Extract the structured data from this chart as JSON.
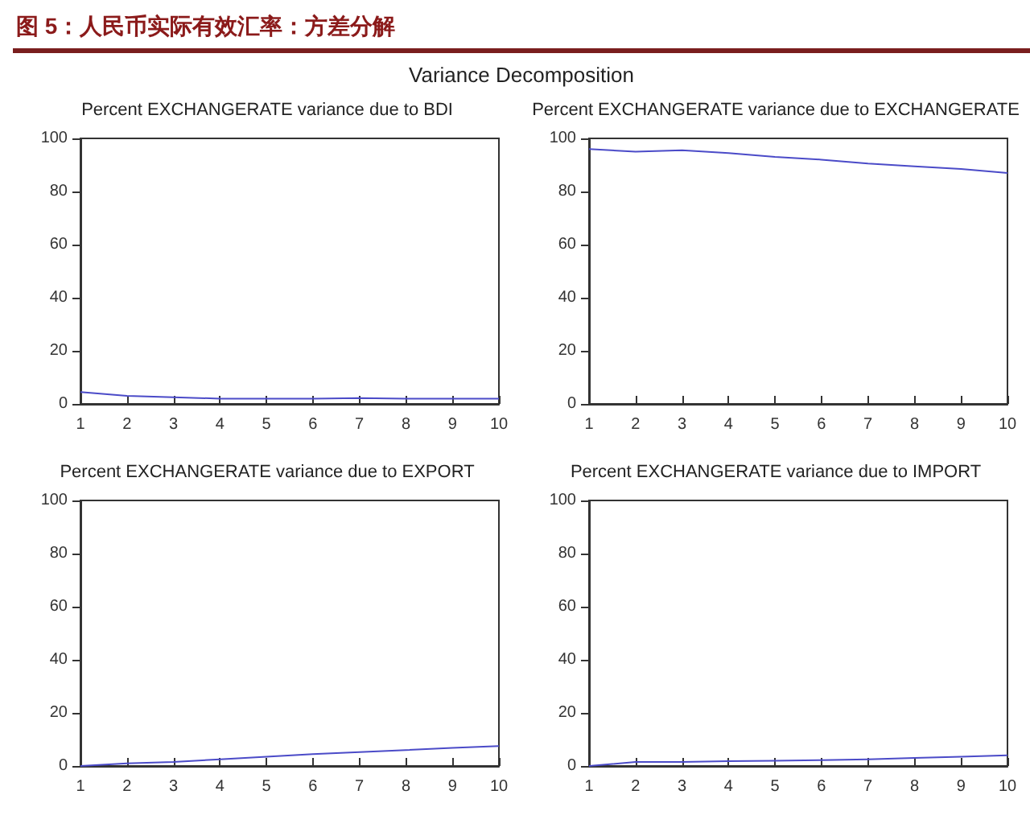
{
  "chart_data": [
    {
      "type": "line",
      "title": "Percent EXCHANGERATE variance due to BDI",
      "annotations": [
        "图 5：人民币实际有效汇率：方差分解",
        "Variance Decomposition"
      ],
      "categories": [
        "1",
        "2",
        "3",
        "4",
        "5",
        "6",
        "7",
        "8",
        "9",
        "10"
      ],
      "series": [
        {
          "color": "#4b4bc8",
          "values": [
            4.5,
            3,
            2.5,
            2,
            2,
            2,
            2.2,
            2,
            2,
            2
          ]
        }
      ],
      "ylim": [
        0,
        100
      ],
      "yticks": [
        0,
        20,
        40,
        60,
        80,
        100
      ],
      "grid": false,
      "marker": "none"
    },
    {
      "type": "line",
      "title": "Percent EXCHANGERATE variance due to EXCHANGERATE",
      "categories": [
        "1",
        "2",
        "3",
        "4",
        "5",
        "6",
        "7",
        "8",
        "9",
        "10"
      ],
      "series": [
        {
          "color": "#4b4bc8",
          "values": [
            96,
            95,
            95.5,
            94.5,
            93,
            92,
            90.5,
            89.5,
            88.5,
            87
          ]
        }
      ],
      "ylim": [
        0,
        100
      ],
      "yticks": [
        0,
        20,
        40,
        60,
        80,
        100
      ],
      "grid": false,
      "marker": "none"
    },
    {
      "type": "line",
      "title": "Percent EXCHANGERATE variance due to EXPORT",
      "categories": [
        "1",
        "2",
        "3",
        "4",
        "5",
        "6",
        "7",
        "8",
        "9",
        "10"
      ],
      "series": [
        {
          "color": "#4b4bc8",
          "values": [
            0,
            1,
            1.5,
            2.5,
            3.5,
            4.5,
            5.2,
            6,
            6.8,
            7.5
          ]
        }
      ],
      "ylim": [
        0,
        100
      ],
      "yticks": [
        0,
        20,
        40,
        60,
        80,
        100
      ],
      "grid": false,
      "marker": "none"
    },
    {
      "type": "line",
      "title": "Percent EXCHANGERATE variance due to IMPORT",
      "categories": [
        "1",
        "2",
        "3",
        "4",
        "5",
        "6",
        "7",
        "8",
        "9",
        "10"
      ],
      "series": [
        {
          "color": "#4b4bc8",
          "values": [
            0,
            1.5,
            1.5,
            1.8,
            2,
            2.2,
            2.5,
            3,
            3.5,
            4
          ]
        }
      ],
      "ylim": [
        0,
        100
      ],
      "yticks": [
        0,
        20,
        40,
        60,
        80,
        100
      ],
      "grid": false,
      "marker": "none"
    }
  ]
}
